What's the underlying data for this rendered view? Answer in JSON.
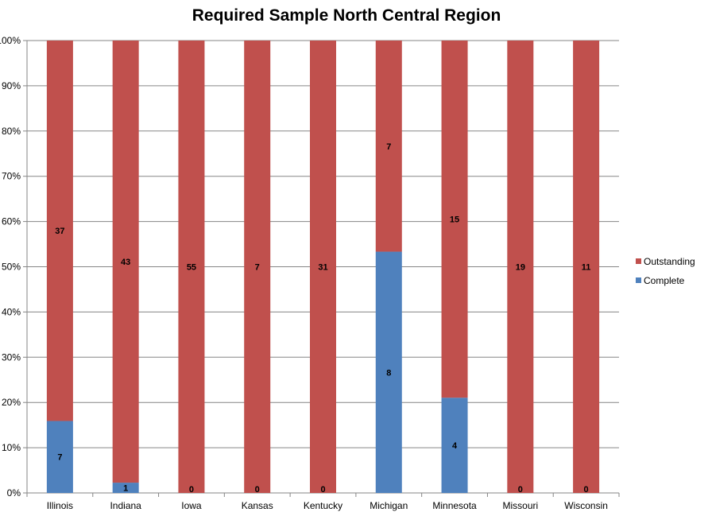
{
  "chart_data": {
    "type": "bar",
    "stacked": "percent",
    "title": "Required Sample North Central Region",
    "categories": [
      "Illinois",
      "Indiana",
      "Iowa",
      "Kansas",
      "Kentucky",
      "Michigan",
      "Minnesota",
      "Missouri",
      "Wisconsin"
    ],
    "series": [
      {
        "name": "Complete",
        "values": [
          7,
          1,
          0,
          0,
          0,
          8,
          4,
          0,
          0
        ],
        "color": "#4F81BD"
      },
      {
        "name": "Outstanding",
        "values": [
          37,
          43,
          55,
          7,
          31,
          7,
          15,
          19,
          11
        ],
        "color": "#C0504D"
      }
    ],
    "y_ticks": [
      "0%",
      "10%",
      "20%",
      "30%",
      "40%",
      "50%",
      "60%",
      "70%",
      "80%",
      "90%",
      "100%"
    ],
    "ylim": [
      0,
      100
    ],
    "grid": true,
    "legend": {
      "position": "right",
      "entries": [
        "Outstanding",
        "Complete"
      ]
    }
  }
}
